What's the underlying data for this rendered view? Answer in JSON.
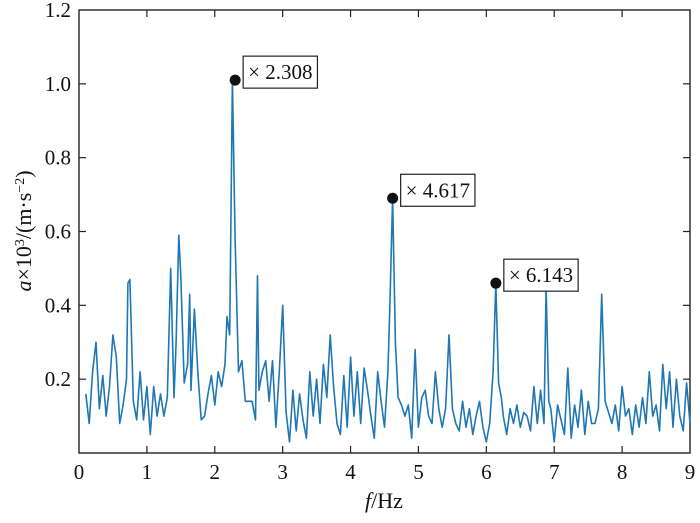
{
  "chart_data": {
    "type": "line",
    "xlabel": {
      "var": "f",
      "unit": "/Hz"
    },
    "ylabel": {
      "var": "a",
      "mult": "×10",
      "exp": "3",
      "open": "/(m·s",
      "neg": "−2",
      "close": ")"
    },
    "xlim": [
      0,
      9
    ],
    "ylim": [
      0,
      1.2
    ],
    "x_ticks": [
      0,
      1,
      2,
      3,
      4,
      5,
      6,
      7,
      8,
      9
    ],
    "x_tick_labels": [
      "0",
      "1",
      "2",
      "3",
      "4",
      "5",
      "6",
      "7",
      "8",
      "9"
    ],
    "y_ticks": [
      0.2,
      0.4,
      0.6,
      0.8,
      1.0,
      1.2
    ],
    "y_tick_labels": [
      "0.2",
      "0.4",
      "0.6",
      "0.8",
      "1.0",
      "1.2"
    ],
    "grid": false,
    "series": [
      {
        "color": "#1f77b4",
        "x": [
          0.1,
          0.15,
          0.2,
          0.25,
          0.3,
          0.35,
          0.4,
          0.45,
          0.5,
          0.55,
          0.6,
          0.65,
          0.7,
          0.72,
          0.75,
          0.8,
          0.85,
          0.9,
          0.95,
          1.0,
          1.05,
          1.1,
          1.15,
          1.2,
          1.25,
          1.3,
          1.35,
          1.4,
          1.43,
          1.47,
          1.5,
          1.55,
          1.6,
          1.63,
          1.65,
          1.7,
          1.75,
          1.8,
          1.85,
          1.9,
          1.95,
          2.0,
          2.05,
          2.1,
          2.15,
          2.18,
          2.22,
          2.26,
          2.3,
          2.35,
          2.4,
          2.45,
          2.5,
          2.55,
          2.6,
          2.63,
          2.65,
          2.7,
          2.75,
          2.8,
          2.85,
          2.9,
          2.95,
          3.0,
          3.05,
          3.1,
          3.15,
          3.2,
          3.25,
          3.3,
          3.35,
          3.4,
          3.45,
          3.5,
          3.55,
          3.6,
          3.65,
          3.7,
          3.75,
          3.8,
          3.85,
          3.9,
          3.95,
          4.0,
          4.05,
          4.1,
          4.15,
          4.2,
          4.25,
          4.3,
          4.35,
          4.4,
          4.45,
          4.5,
          4.55,
          4.58,
          4.62,
          4.66,
          4.7,
          4.75,
          4.8,
          4.85,
          4.9,
          4.95,
          5.0,
          5.05,
          5.1,
          5.15,
          5.2,
          5.25,
          5.3,
          5.35,
          5.4,
          5.45,
          5.5,
          5.55,
          5.6,
          5.65,
          5.7,
          5.75,
          5.8,
          5.85,
          5.9,
          5.95,
          6.0,
          6.05,
          6.1,
          6.14,
          6.18,
          6.22,
          6.25,
          6.3,
          6.35,
          6.4,
          6.45,
          6.5,
          6.55,
          6.6,
          6.65,
          6.7,
          6.75,
          6.8,
          6.85,
          6.88,
          6.92,
          6.95,
          7.0,
          7.05,
          7.1,
          7.15,
          7.2,
          7.25,
          7.3,
          7.35,
          7.4,
          7.45,
          7.5,
          7.55,
          7.6,
          7.65,
          7.7,
          7.75,
          7.8,
          7.85,
          7.9,
          7.95,
          8.0,
          8.05,
          8.1,
          8.15,
          8.2,
          8.25,
          8.3,
          8.35,
          8.4,
          8.45,
          8.5,
          8.55,
          8.6,
          8.65,
          8.7,
          8.75,
          8.8,
          8.85,
          8.9,
          8.95,
          9.0
        ],
        "y": [
          0.16,
          0.08,
          0.22,
          0.3,
          0.12,
          0.21,
          0.1,
          0.18,
          0.32,
          0.26,
          0.08,
          0.13,
          0.2,
          0.46,
          0.47,
          0.14,
          0.09,
          0.22,
          0.09,
          0.18,
          0.05,
          0.18,
          0.1,
          0.16,
          0.1,
          0.15,
          0.5,
          0.15,
          0.3,
          0.59,
          0.48,
          0.19,
          0.24,
          0.43,
          0.17,
          0.39,
          0.22,
          0.09,
          0.1,
          0.16,
          0.21,
          0.13,
          0.22,
          0.18,
          0.24,
          0.37,
          0.32,
          1.01,
          0.58,
          0.22,
          0.25,
          0.14,
          0.14,
          0.14,
          0.09,
          0.48,
          0.17,
          0.22,
          0.25,
          0.14,
          0.25,
          0.07,
          0.22,
          0.4,
          0.11,
          0.03,
          0.17,
          0.06,
          0.16,
          0.09,
          0.04,
          0.22,
          0.1,
          0.2,
          0.08,
          0.24,
          0.15,
          0.32,
          0.18,
          0.08,
          0.05,
          0.21,
          0.07,
          0.26,
          0.1,
          0.22,
          0.08,
          0.23,
          0.17,
          0.1,
          0.04,
          0.22,
          0.14,
          0.07,
          0.22,
          0.4,
          0.69,
          0.3,
          0.15,
          0.13,
          0.1,
          0.13,
          0.04,
          0.28,
          0.07,
          0.15,
          0.17,
          0.1,
          0.08,
          0.22,
          0.12,
          0.07,
          0.12,
          0.32,
          0.12,
          0.08,
          0.06,
          0.14,
          0.07,
          0.12,
          0.05,
          0.1,
          0.14,
          0.07,
          0.03,
          0.08,
          0.22,
          0.46,
          0.19,
          0.15,
          0.1,
          0.05,
          0.12,
          0.08,
          0.13,
          0.07,
          0.11,
          0.1,
          0.06,
          0.18,
          0.08,
          0.17,
          0.08,
          0.45,
          0.14,
          0.12,
          0.03,
          0.13,
          0.09,
          0.05,
          0.23,
          0.04,
          0.13,
          0.07,
          0.17,
          0.05,
          0.14,
          0.08,
          0.08,
          0.12,
          0.43,
          0.14,
          0.11,
          0.08,
          0.13,
          0.06,
          0.18,
          0.1,
          0.12,
          0.05,
          0.13,
          0.07,
          0.15,
          0.08,
          0.22,
          0.1,
          0.13,
          0.06,
          0.24,
          0.12,
          0.22,
          0.07,
          0.2,
          0.1,
          0.06,
          0.19,
          0.08
        ]
      }
    ],
    "annotations": [
      {
        "x": 2.3,
        "y": 1.01,
        "text": "× 2.308"
      },
      {
        "x": 4.62,
        "y": 0.69,
        "text": "× 4.617"
      },
      {
        "x": 6.14,
        "y": 0.46,
        "text": "× 6.143"
      }
    ]
  }
}
